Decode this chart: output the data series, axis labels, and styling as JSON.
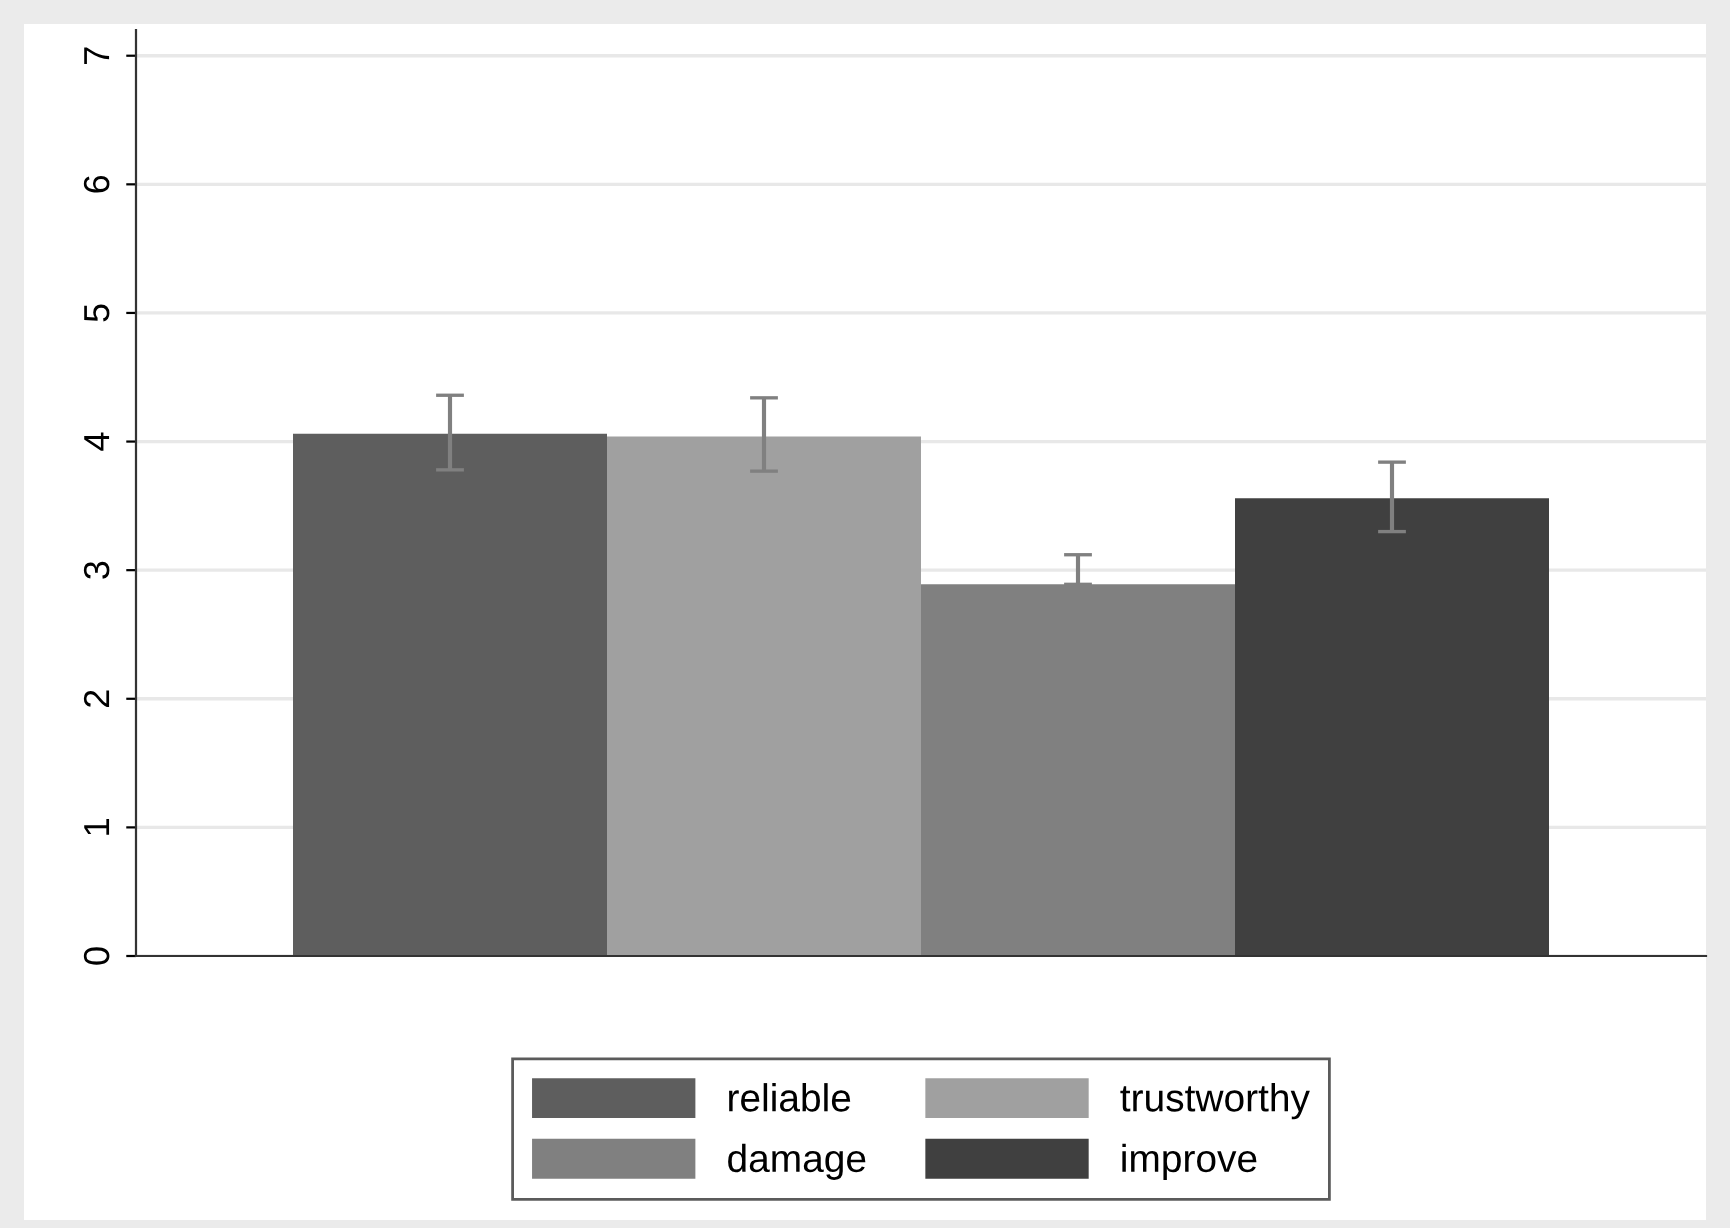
{
  "chart_data": {
    "type": "bar",
    "categories": [
      null
    ],
    "series": [
      {
        "name": "reliable",
        "color": "#5e5e5e",
        "values": [
          4.06
        ],
        "errors": [
          [
            3.78,
            4.36
          ]
        ]
      },
      {
        "name": "trustworthy",
        "color": "#a0a0a0",
        "values": [
          4.04
        ],
        "errors": [
          [
            3.77,
            4.34
          ]
        ]
      },
      {
        "name": "damage",
        "color": "#808080",
        "values": [
          2.89
        ],
        "errors": [
          [
            2.89,
            3.12
          ]
        ]
      },
      {
        "name": "improve",
        "color": "#404040",
        "values": [
          3.56
        ],
        "errors": [
          [
            3.3,
            3.84
          ]
        ]
      }
    ],
    "ylim": [
      0,
      7.2
    ],
    "yticks": [
      0,
      1,
      2,
      3,
      4,
      5,
      6,
      7
    ],
    "grid": "y",
    "legend": "bottom"
  }
}
